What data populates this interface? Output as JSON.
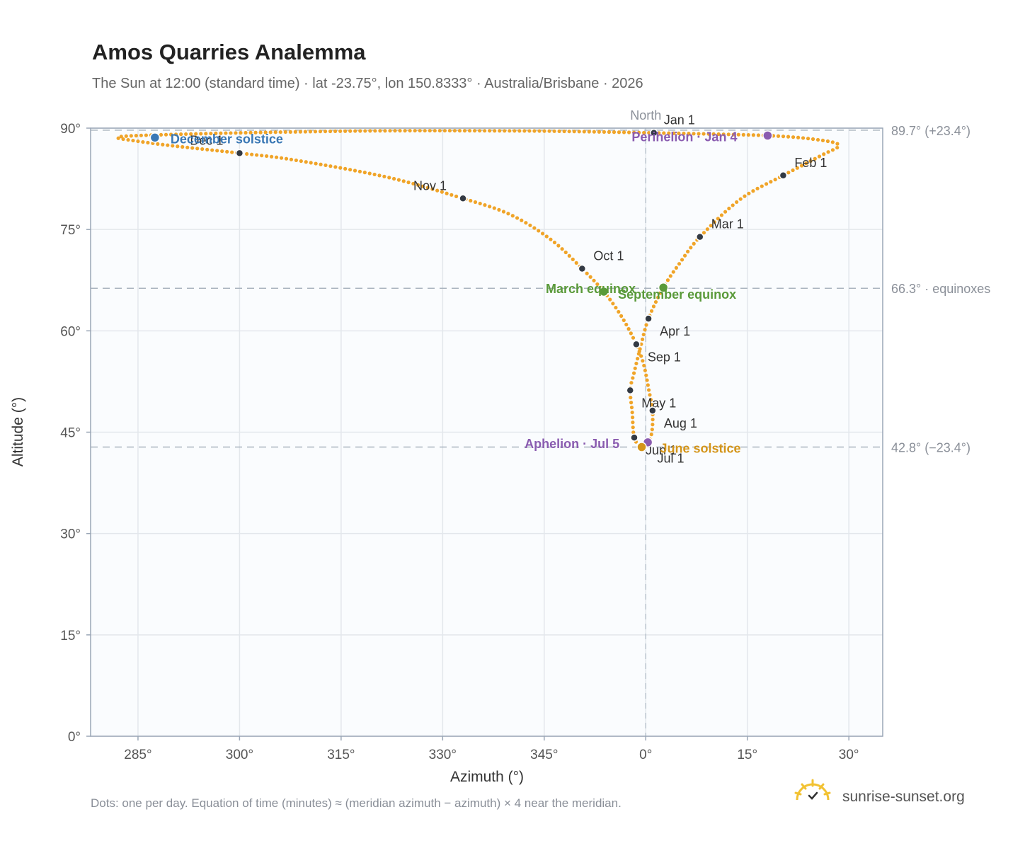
{
  "header": {
    "title": "Amos Quarries Analemma",
    "subtitle": "The Sun at 12:00 (standard time) · lat -23.75°, lon 150.8333° · Australia/Brisbane · 2026"
  },
  "footer": {
    "note": "Dots: one per day. Equation of time (minutes) ≈ (meridian azimuth − azimuth) × 4 near the meridian.",
    "brand": "sunrise-sunset.org",
    "logo_icon": "sun-logo-icon"
  },
  "chart_data": {
    "type": "scatter",
    "xlabel": "Azimuth (°)",
    "ylabel": "Altitude (°)",
    "xlim": [
      -37,
      11.5
    ],
    "ylim": [
      0,
      90
    ],
    "x_ticks": [
      {
        "value": -75,
        "label": "285°"
      },
      {
        "value": -60,
        "label": "300°"
      },
      {
        "value": -45,
        "label": "315°"
      },
      {
        "value": -30,
        "label": "330°"
      },
      {
        "value": -15,
        "label": "345°"
      },
      {
        "value": 0,
        "label": "0°"
      },
      {
        "value": 15,
        "label": "15°"
      },
      {
        "value": 30,
        "label": "30°"
      }
    ],
    "y_ticks": [
      {
        "value": 0,
        "label": "0°"
      },
      {
        "value": 15,
        "label": "15°"
      },
      {
        "value": 30,
        "label": "30°"
      },
      {
        "value": 45,
        "label": "45°"
      },
      {
        "value": 60,
        "label": "60°"
      },
      {
        "value": 75,
        "label": "75°"
      },
      {
        "value": 90,
        "label": "90°"
      }
    ],
    "meridian": {
      "azimuth": 0,
      "label": "North"
    },
    "reference_lines": [
      {
        "altitude": 89.7,
        "label": "89.7° (+23.4°)"
      },
      {
        "altitude": 66.3,
        "label": "66.3° · equinoxes"
      },
      {
        "altitude": 42.8,
        "label": "42.8° (−23.4°)"
      }
    ],
    "grid": true,
    "series_color": "#f0a428",
    "path": [
      {
        "az": 1.2,
        "alt": 89.3
      },
      {
        "az": 18.0,
        "alt": 88.9
      },
      {
        "az": 26.0,
        "alt": 88.2
      },
      {
        "az": 28.5,
        "alt": 87.4
      },
      {
        "az": 26.0,
        "alt": 86.0
      },
      {
        "az": 20.3,
        "alt": 83.0
      },
      {
        "az": 14.0,
        "alt": 79.5
      },
      {
        "az": 8.0,
        "alt": 73.9
      },
      {
        "az": 5.0,
        "alt": 70.0
      },
      {
        "az": 2.6,
        "alt": 66.4
      },
      {
        "az": 0.4,
        "alt": 61.8
      },
      {
        "az": -0.8,
        "alt": 57.5
      },
      {
        "az": -1.8,
        "alt": 53.5
      },
      {
        "az": -2.3,
        "alt": 51.2
      },
      {
        "az": -2.0,
        "alt": 48.0
      },
      {
        "az": -1.7,
        "alt": 44.2
      },
      {
        "az": -0.6,
        "alt": 42.8
      },
      {
        "az": 0.3,
        "alt": 43.5
      },
      {
        "az": 0.9,
        "alt": 45.0
      },
      {
        "az": 1.0,
        "alt": 48.2
      },
      {
        "az": 0.5,
        "alt": 51.0
      },
      {
        "az": -0.3,
        "alt": 55.0
      },
      {
        "az": -1.4,
        "alt": 58.0
      },
      {
        "az": -3.5,
        "alt": 62.0
      },
      {
        "az": -6.2,
        "alt": 65.8
      },
      {
        "az": -9.4,
        "alt": 69.2
      },
      {
        "az": -14.0,
        "alt": 73.5
      },
      {
        "az": -20.0,
        "alt": 77.2
      },
      {
        "az": -27.0,
        "alt": 79.6
      },
      {
        "az": -38.0,
        "alt": 82.7
      },
      {
        "az": -52.0,
        "alt": 85.3
      },
      {
        "az": -60.0,
        "alt": 86.3
      },
      {
        "az": -70.0,
        "alt": 87.4
      },
      {
        "az": -76.0,
        "alt": 88.2
      },
      {
        "az": -78.0,
        "alt": 88.6
      },
      {
        "az": -75.0,
        "alt": 88.9
      },
      {
        "az": -60.0,
        "alt": 89.3
      },
      {
        "az": -40.0,
        "alt": 89.6
      },
      {
        "az": -20.0,
        "alt": 89.6
      },
      {
        "az": -10.0,
        "alt": 89.5
      },
      {
        "az": 1.2,
        "alt": 89.3
      }
    ],
    "months": [
      {
        "label": "Jan 1",
        "az": 1.2,
        "alt": 89.3,
        "dx": 14,
        "dy": -12
      },
      {
        "label": "Feb 1",
        "az": 20.3,
        "alt": 83.0,
        "dx": 16,
        "dy": -12
      },
      {
        "label": "Mar 1",
        "az": 8.0,
        "alt": 73.9,
        "dx": 16,
        "dy": -12
      },
      {
        "label": "Apr 1",
        "az": 0.4,
        "alt": 61.8,
        "dx": 16,
        "dy": 24
      },
      {
        "label": "May 1",
        "az": -2.3,
        "alt": 51.2,
        "dx": 16,
        "dy": 24
      },
      {
        "label": "Jun 1",
        "az": -1.7,
        "alt": 44.2,
        "dx": 16,
        "dy": 24
      },
      {
        "label": "Jul 1",
        "az": -0.6,
        "alt": 42.8,
        "dx": 22,
        "dy": 22
      },
      {
        "label": "Aug 1",
        "az": 1.0,
        "alt": 48.2,
        "dx": 16,
        "dy": 24
      },
      {
        "label": "Sep 1",
        "az": -1.4,
        "alt": 58.0,
        "dx": 16,
        "dy": 24
      },
      {
        "label": "Oct 1",
        "az": -9.4,
        "alt": 69.2,
        "dx": 16,
        "dy": -12
      },
      {
        "label": "Nov 1",
        "az": -27.0,
        "alt": 79.6,
        "dx": -70,
        "dy": -12
      },
      {
        "label": "Dec 1",
        "az": -60.0,
        "alt": 86.3,
        "dx": -70,
        "dy": -12
      }
    ],
    "events": [
      {
        "label": "December solstice",
        "az": -72.5,
        "alt": 88.6,
        "color": "#3a78b5",
        "dx": 22,
        "dy": 8
      },
      {
        "label": "Perihelion · Jan 4",
        "az": 18.0,
        "alt": 88.9,
        "color": "#8a5cb0",
        "dx": -192,
        "dy": 8
      },
      {
        "label": "March equinox",
        "az": -6.2,
        "alt": 65.8,
        "color": "#5a9a3a",
        "dx": -82,
        "dy": 2
      },
      {
        "label": "September equinox",
        "az": 2.6,
        "alt": 66.4,
        "color": "#5a9a3a",
        "dx": -64,
        "dy": 16
      },
      {
        "label": "Aphelion · Jul 5",
        "az": 0.3,
        "alt": 43.5,
        "color": "#8a5cb0",
        "dx": -174,
        "dy": 8
      },
      {
        "label": "June solstice",
        "az": -0.6,
        "alt": 42.8,
        "color": "#d4951a",
        "dx": 26,
        "dy": 8
      }
    ]
  }
}
